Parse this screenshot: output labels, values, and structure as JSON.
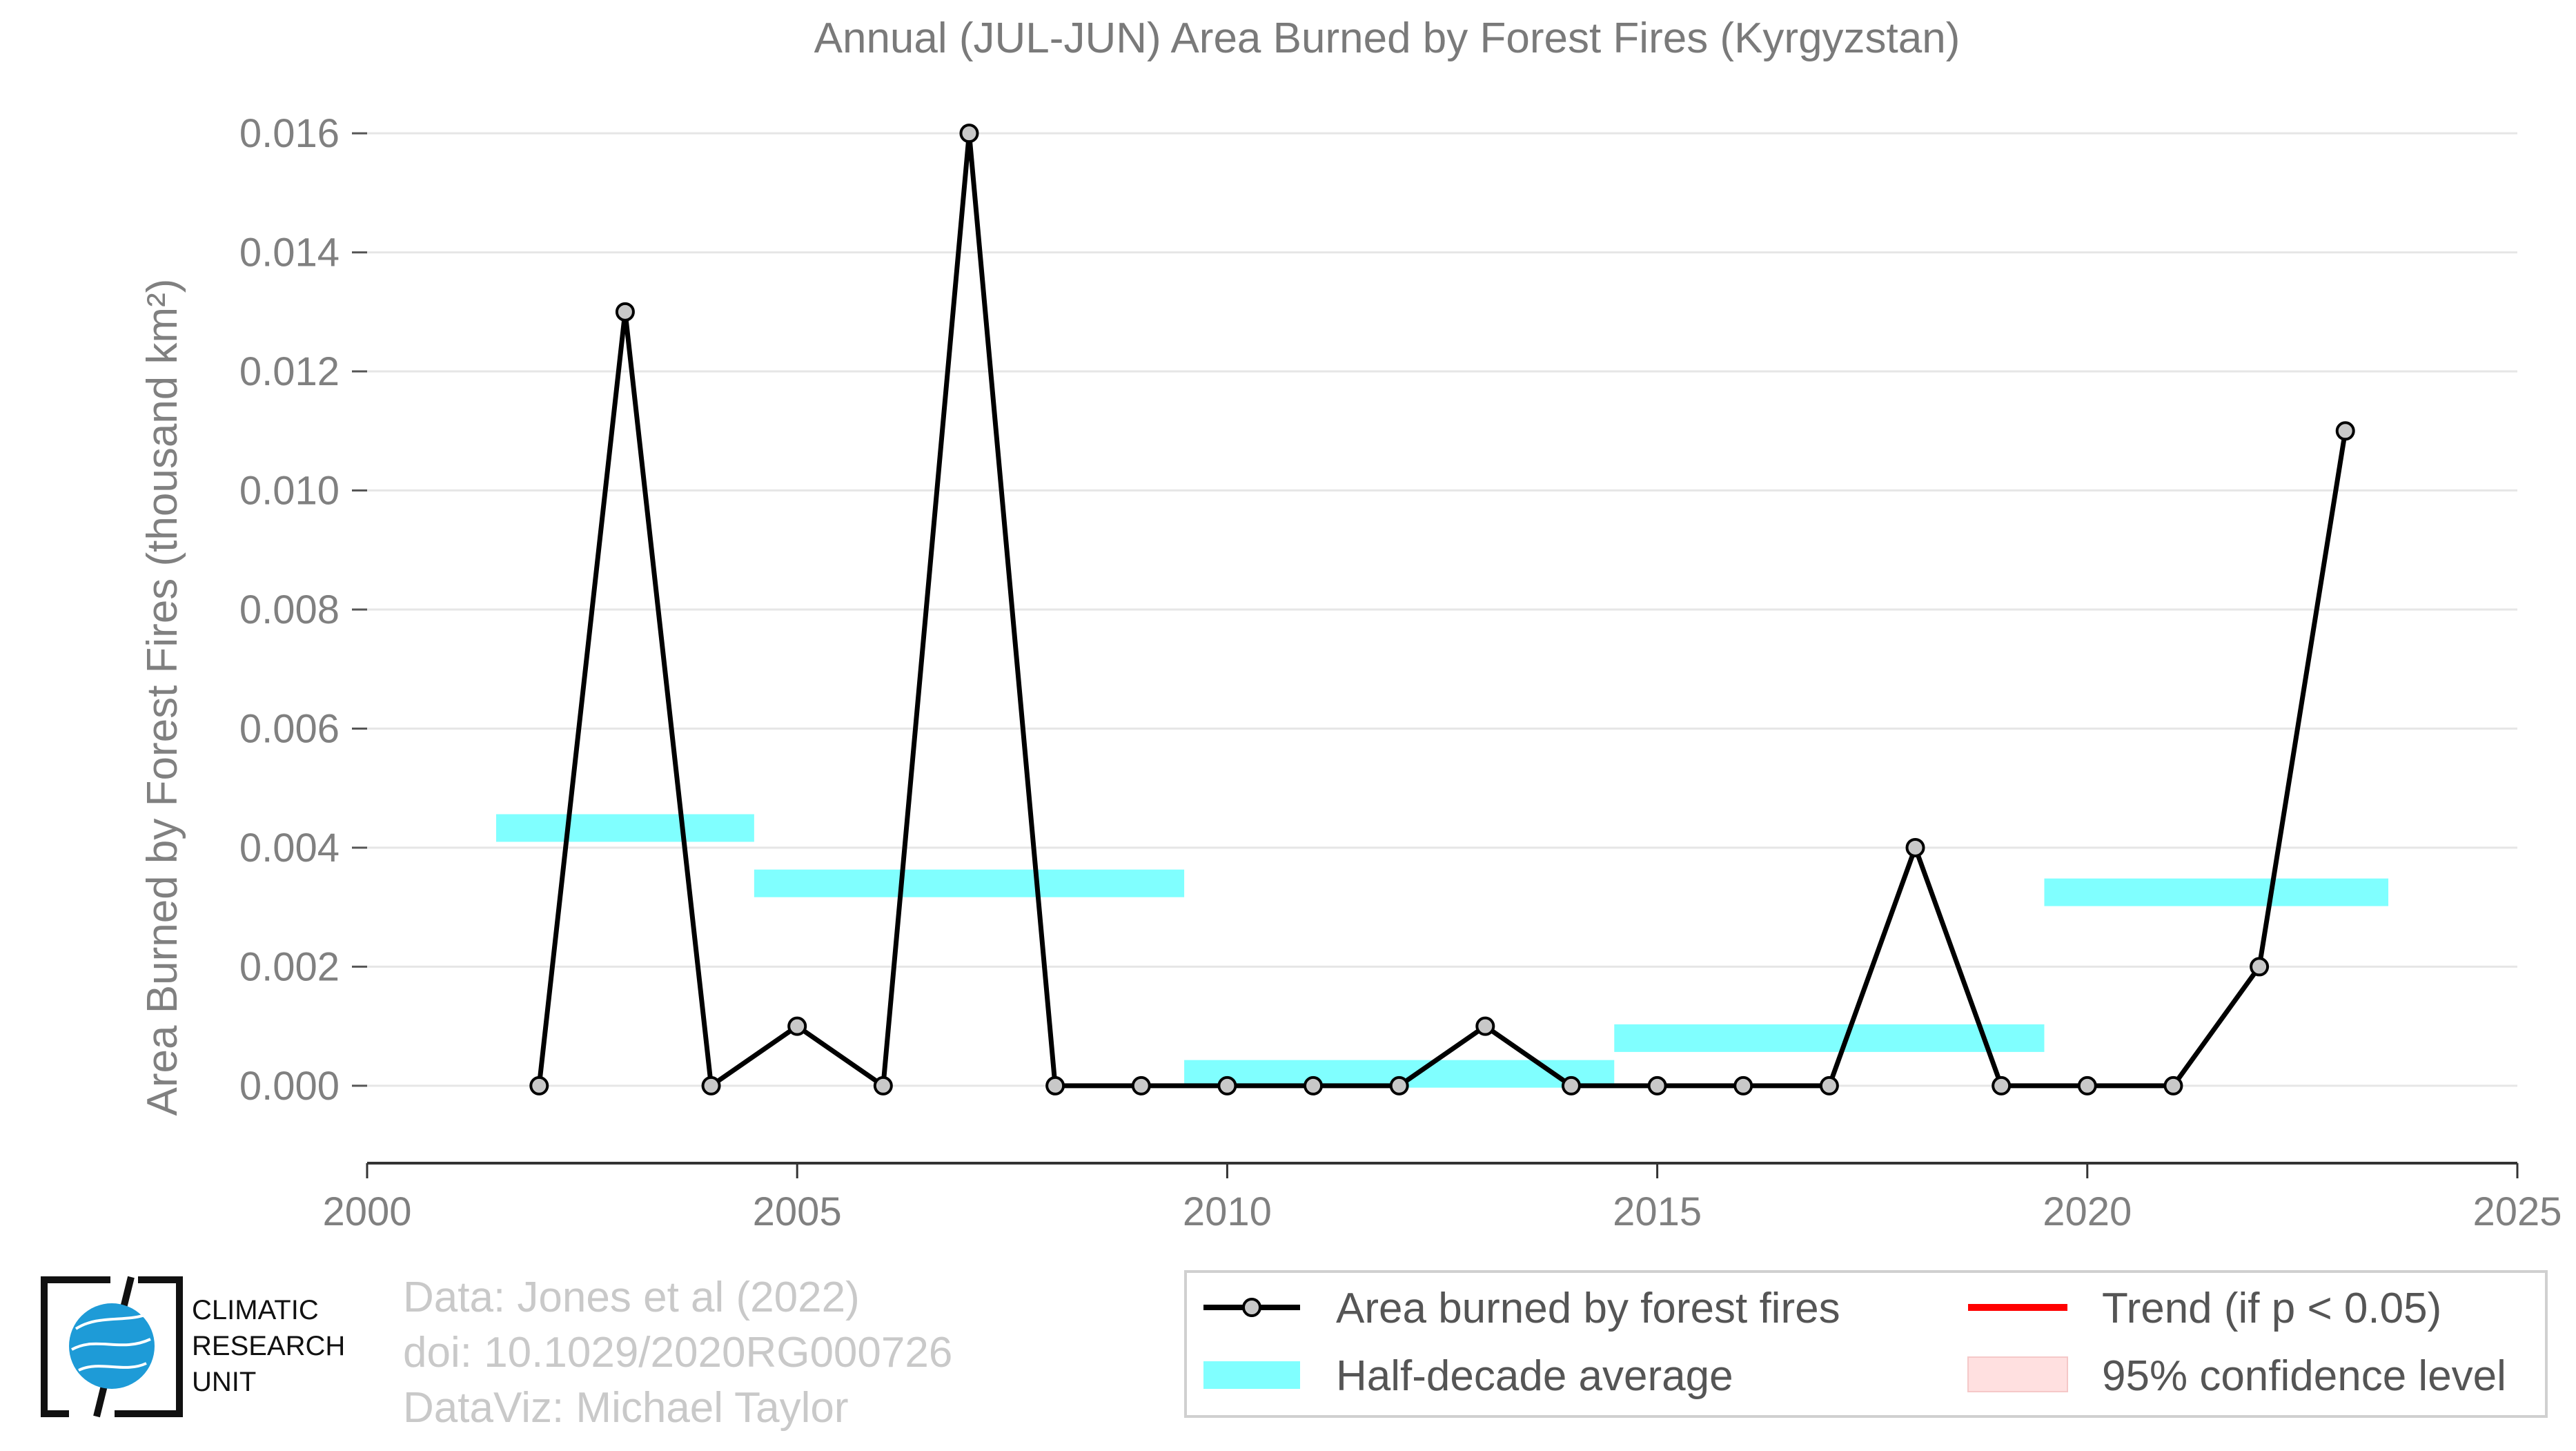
{
  "chart_data": {
    "type": "line",
    "title": "Annual (JUL-JUN) Area Burned by Forest Fires (Kyrgyzstan)",
    "xlabel": "",
    "ylabel": "Area Burned by Forest Fires (thousand km²)",
    "xlim": [
      2000,
      2025
    ],
    "ylim": [
      -0.0013,
      0.0165
    ],
    "x_ticks": [
      "2000",
      "2005",
      "2010",
      "2015",
      "2020",
      "2025"
    ],
    "y_ticks": [
      "0.000",
      "0.002",
      "0.004",
      "0.006",
      "0.008",
      "0.010",
      "0.012",
      "0.014",
      "0.016"
    ],
    "grid": true,
    "legend_position": "bottom-right",
    "series": [
      {
        "name": "Area burned by forest fires",
        "color": "#000000",
        "marker_fill": "#c8c8c8",
        "x": [
          2002,
          2003,
          2004,
          2005,
          2006,
          2007,
          2008,
          2009,
          2010,
          2011,
          2012,
          2013,
          2014,
          2015,
          2016,
          2017,
          2018,
          2019,
          2020,
          2021,
          2022,
          2023
        ],
        "y": [
          0.0,
          0.013,
          0.0,
          0.001,
          0.0,
          0.016,
          0.0,
          0.0,
          0.0,
          0.0,
          0.0,
          0.001,
          0.0,
          0.0,
          0.0,
          0.0,
          0.004,
          0.0,
          0.0,
          0.0,
          0.002,
          0.011
        ]
      }
    ],
    "half_decade_average": {
      "name": "Half-decade average",
      "color": "#80ffff",
      "segments": [
        {
          "x0": 2001.5,
          "x1": 2004.5,
          "y": 0.00433
        },
        {
          "x0": 2004.5,
          "x1": 2009.5,
          "y": 0.0034
        },
        {
          "x0": 2009.5,
          "x1": 2014.5,
          "y": 0.0002
        },
        {
          "x0": 2014.5,
          "x1": 2019.5,
          "y": 0.0008
        },
        {
          "x0": 2019.5,
          "x1": 2023.5,
          "y": 0.00325
        }
      ]
    },
    "legend": [
      {
        "label": "Area burned by forest fires",
        "kind": "line-marker",
        "color": "#000000"
      },
      {
        "label": "Half-decade average",
        "kind": "band",
        "color": "#80ffff"
      },
      {
        "label": "Trend (if p < 0.05)",
        "kind": "line",
        "color": "#ff0000"
      },
      {
        "label": "95% confidence level",
        "kind": "patch",
        "color": "#ffe0e0"
      }
    ]
  },
  "credits": {
    "line1": "Data: Jones et al (2022)",
    "line2": "doi: 10.1029/2020RG000726",
    "line3": "DataViz: Michael Taylor"
  },
  "logo": {
    "line1": "CLIMATIC",
    "line2": "RESEARCH",
    "line3": "UNIT",
    "globe_color": "#1e9bd7"
  }
}
